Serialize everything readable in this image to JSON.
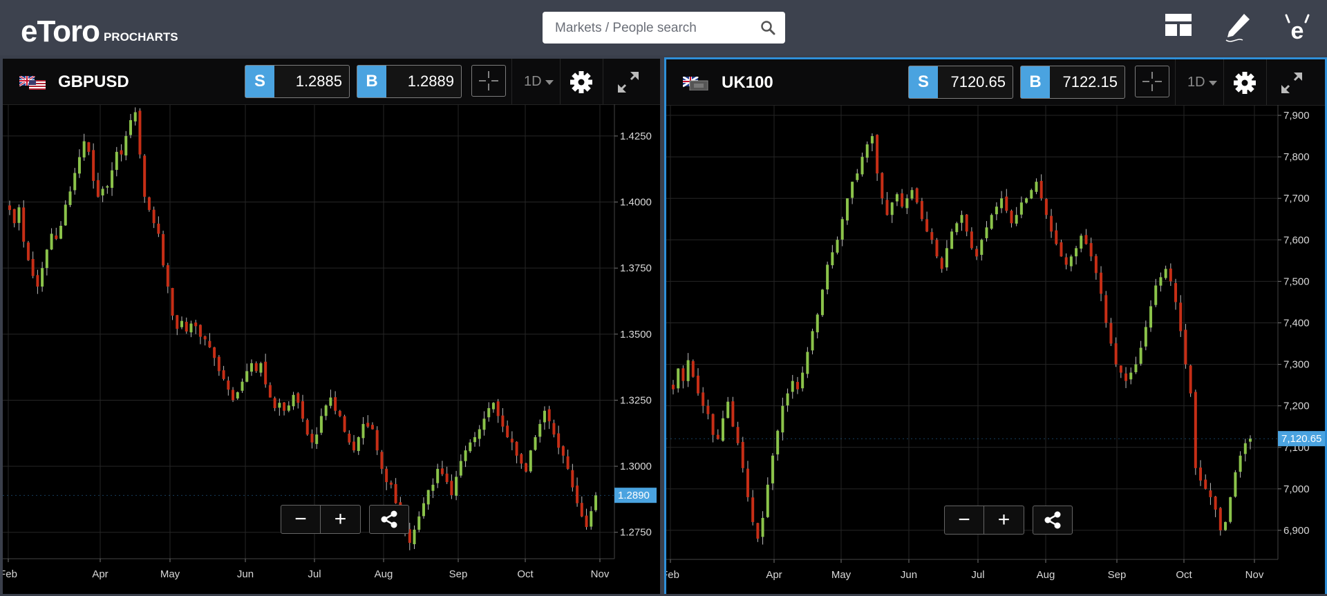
{
  "header": {
    "logo_text": "eToro",
    "logo_sub": "PROCHARTS",
    "search_placeholder": "Markets / People search",
    "icons": [
      "layout-icon",
      "pencil-icon",
      "etoro-profile-icon"
    ]
  },
  "panels": [
    {
      "symbol": "GBPUSD",
      "flag": "uk-us-flag",
      "sell_label": "S",
      "sell_value": "1.2885",
      "buy_label": "B",
      "buy_value": "1.2889",
      "timeframe": "1D",
      "last_price_label": "1.2890",
      "zoom_out_label": "−",
      "zoom_in_label": "+",
      "y_ticks": [
        {
          "value": 1.425,
          "label": "1.4250"
        },
        {
          "value": 1.4,
          "label": "1.4000"
        },
        {
          "value": 1.375,
          "label": "1.3750"
        },
        {
          "value": 1.35,
          "label": "1.3500"
        },
        {
          "value": 1.325,
          "label": "1.3250"
        },
        {
          "value": 1.3,
          "label": "1.3000"
        },
        {
          "value": 1.275,
          "label": "1.2750"
        }
      ],
      "x_ticks": [
        "Feb",
        "Apr",
        "May",
        "Jun",
        "Jul",
        "Aug",
        "Sep",
        "Oct",
        "Nov"
      ]
    },
    {
      "symbol": "UK100",
      "flag": "uk-flag",
      "sell_label": "S",
      "sell_value": "7120.65",
      "buy_label": "B",
      "buy_value": "7122.15",
      "timeframe": "1D",
      "last_price_label": "7,120.65",
      "zoom_out_label": "−",
      "zoom_in_label": "+",
      "y_ticks": [
        {
          "value": 7900,
          "label": "7,900"
        },
        {
          "value": 7800,
          "label": "7,800"
        },
        {
          "value": 7700,
          "label": "7,700"
        },
        {
          "value": 7600,
          "label": "7,600"
        },
        {
          "value": 7500,
          "label": "7,500"
        },
        {
          "value": 7400,
          "label": "7,400"
        },
        {
          "value": 7300,
          "label": "7,300"
        },
        {
          "value": 7200,
          "label": "7,200"
        },
        {
          "value": 7100,
          "label": "7,100"
        },
        {
          "value": 7000,
          "label": "7,000"
        },
        {
          "value": 6900,
          "label": "6,900"
        }
      ],
      "x_ticks": [
        "Feb",
        "Apr",
        "May",
        "Jun",
        "Jul",
        "Aug",
        "Sep",
        "Oct",
        "Nov"
      ]
    }
  ],
  "chart_data": [
    {
      "type": "candlestick",
      "series_name": "GBPUSD",
      "ylim": [
        1.265,
        1.437
      ],
      "x_ticks": [
        "Feb",
        "Apr",
        "May",
        "Jun",
        "Jul",
        "Aug",
        "Sep",
        "Oct",
        "Nov"
      ],
      "closes": [
        1.397,
        1.392,
        1.398,
        1.385,
        1.378,
        1.372,
        1.368,
        1.375,
        1.382,
        1.388,
        1.386,
        1.391,
        1.399,
        1.404,
        1.411,
        1.417,
        1.423,
        1.419,
        1.408,
        1.402,
        1.405,
        1.406,
        1.412,
        1.419,
        1.418,
        1.425,
        1.431,
        1.434,
        1.418,
        1.402,
        1.397,
        1.392,
        1.388,
        1.376,
        1.368,
        1.357,
        1.352,
        1.355,
        1.351,
        1.354,
        1.353,
        1.349,
        1.348,
        1.345,
        1.341,
        1.336,
        1.333,
        1.329,
        1.325,
        1.328,
        1.332,
        1.336,
        1.339,
        1.336,
        1.339,
        1.331,
        1.326,
        1.322,
        1.324,
        1.321,
        1.323,
        1.327,
        1.324,
        1.318,
        1.312,
        1.309,
        1.312,
        1.319,
        1.323,
        1.326,
        1.321,
        1.319,
        1.313,
        1.309,
        1.306,
        1.311,
        1.316,
        1.315,
        1.314,
        1.306,
        1.299,
        1.294,
        1.293,
        1.286,
        1.281,
        1.276,
        1.271,
        1.276,
        1.281,
        1.286,
        1.291,
        1.293,
        1.299,
        1.297,
        1.294,
        1.289,
        1.296,
        1.302,
        1.306,
        1.309,
        1.311,
        1.314,
        1.318,
        1.322,
        1.324,
        1.319,
        1.315,
        1.311,
        1.309,
        1.304,
        1.301,
        1.298,
        1.306,
        1.311,
        1.316,
        1.321,
        1.317,
        1.312,
        1.307,
        1.304,
        1.299,
        1.292,
        1.286,
        1.281,
        1.277,
        1.283,
        1.289
      ]
    },
    {
      "type": "candlestick",
      "series_name": "UK100",
      "ylim": [
        6830,
        7925
      ],
      "x_ticks": [
        "Feb",
        "Apr",
        "May",
        "Jun",
        "Jul",
        "Aug",
        "Sep",
        "Oct",
        "Nov"
      ],
      "closes": [
        7240,
        7290,
        7260,
        7310,
        7270,
        7230,
        7200,
        7180,
        7130,
        7120,
        7170,
        7210,
        7150,
        7110,
        7050,
        6980,
        6920,
        6880,
        6930,
        7010,
        7080,
        7140,
        7200,
        7230,
        7260,
        7240,
        7280,
        7330,
        7380,
        7420,
        7480,
        7540,
        7570,
        7600,
        7650,
        7700,
        7740,
        7760,
        7800,
        7830,
        7850,
        7760,
        7700,
        7660,
        7690,
        7710,
        7680,
        7700,
        7720,
        7690,
        7650,
        7620,
        7600,
        7560,
        7530,
        7580,
        7620,
        7640,
        7660,
        7620,
        7580,
        7560,
        7600,
        7630,
        7660,
        7680,
        7700,
        7670,
        7640,
        7660,
        7690,
        7700,
        7720,
        7740,
        7700,
        7660,
        7620,
        7590,
        7560,
        7540,
        7560,
        7580,
        7610,
        7590,
        7560,
        7520,
        7470,
        7400,
        7350,
        7300,
        7280,
        7260,
        7280,
        7300,
        7340,
        7390,
        7440,
        7490,
        7510,
        7530,
        7500,
        7450,
        7380,
        7300,
        7230,
        7050,
        7020,
        7000,
        6980,
        6950,
        6900,
        6920,
        6980,
        7040,
        7080,
        7110,
        7121
      ]
    }
  ]
}
